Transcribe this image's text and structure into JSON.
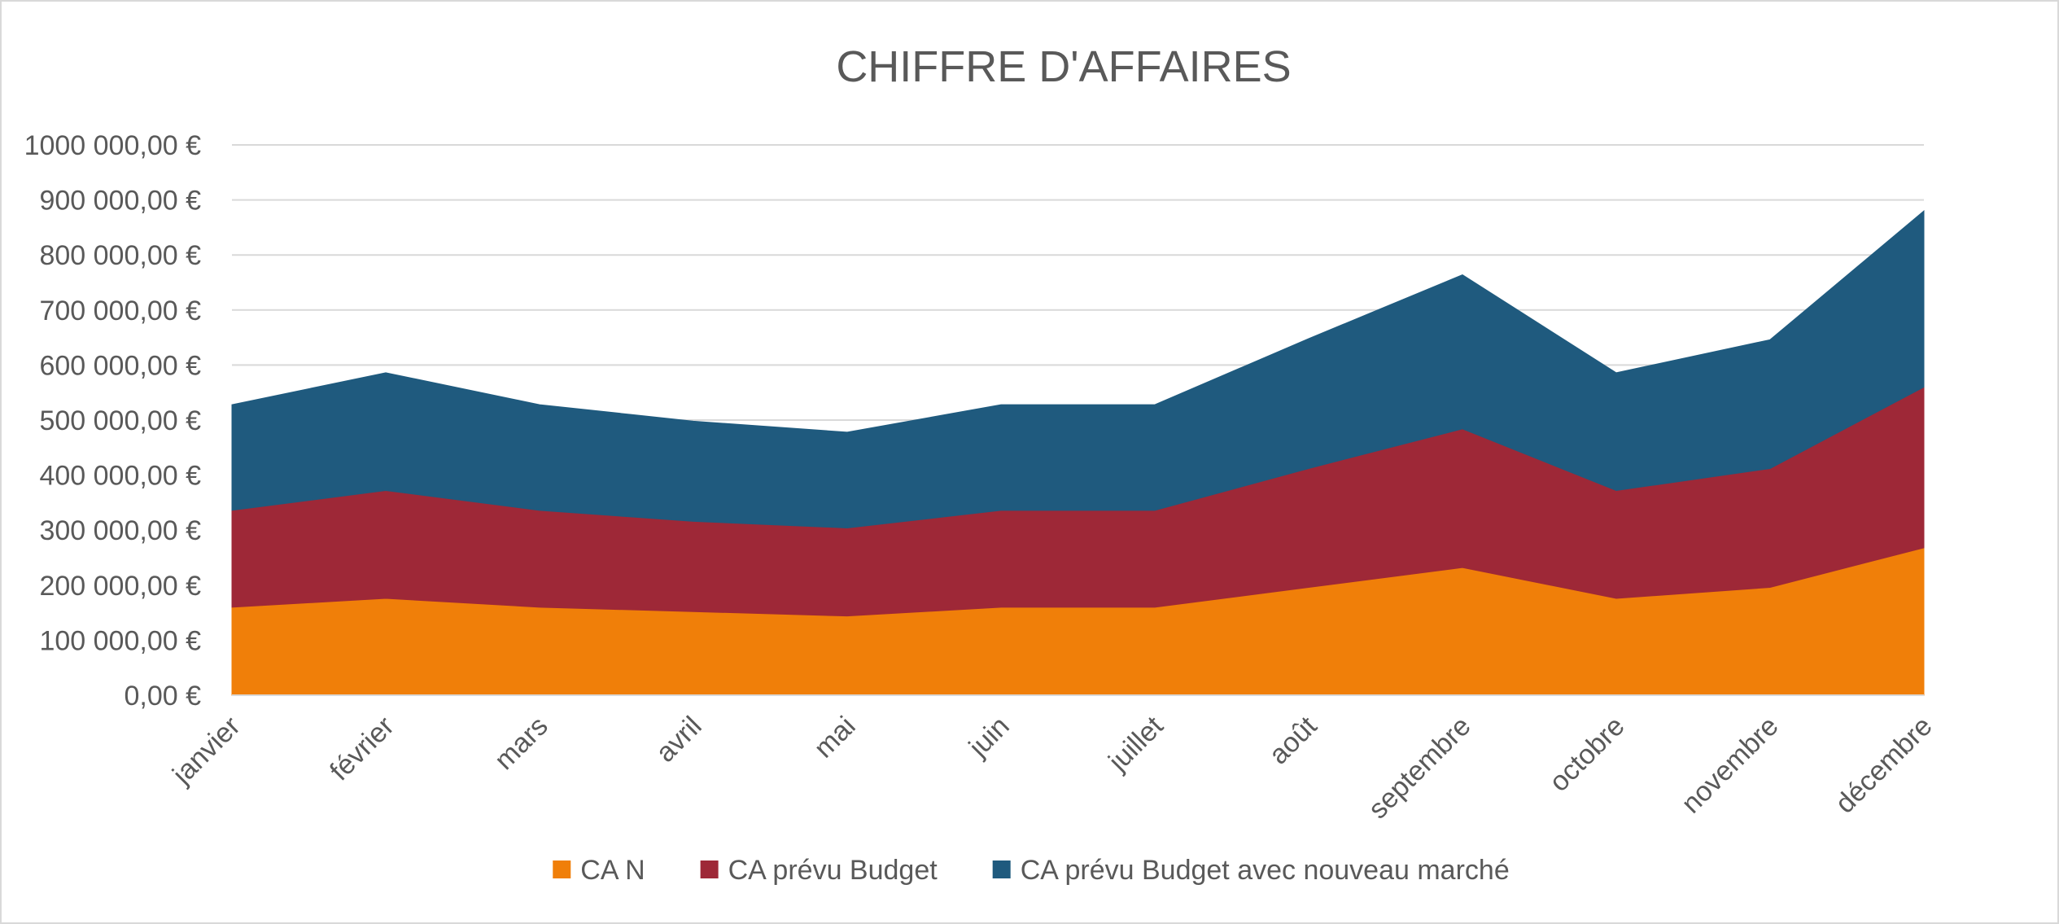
{
  "chart_data": {
    "type": "area",
    "stacked": true,
    "title": "CHIFFRE D'AFFAIRES",
    "xlabel": "",
    "ylabel": "",
    "categories": [
      "janvier",
      "février",
      "mars",
      "avril",
      "mai",
      "juin",
      "juillet",
      "août",
      "septembre",
      "octobre",
      "novembre",
      "décembre"
    ],
    "series": [
      {
        "name": "CA N",
        "color": "#f07f09",
        "values": [
          160000,
          176000,
          160000,
          152000,
          144000,
          160000,
          160000,
          196000,
          232000,
          176000,
          196000,
          268000
        ]
      },
      {
        "name": "CA prévu Budget",
        "color": "#9e2837",
        "values": [
          176000,
          196000,
          176000,
          164000,
          160000,
          176000,
          176000,
          216000,
          252000,
          196000,
          216000,
          292000
        ]
      },
      {
        "name": "CA prévu Budget avec nouveau marché",
        "color": "#1f5a7e",
        "values": [
          192000,
          214000,
          192000,
          182000,
          174000,
          192000,
          192000,
          236000,
          280000,
          214000,
          234000,
          320000
        ]
      }
    ],
    "ylim": [
      0,
      1000000
    ],
    "ytick_labels": [
      "0,00 €",
      "100 000,00 €",
      "200 000,00 €",
      "300 000,00 €",
      "400 000,00 €",
      "500 000,00 €",
      "600 000,00 €",
      "700 000,00 €",
      "800 000,00 €",
      "900 000,00 €",
      "1000 000,00 €"
    ],
    "grid": true,
    "legend_position": "bottom"
  }
}
